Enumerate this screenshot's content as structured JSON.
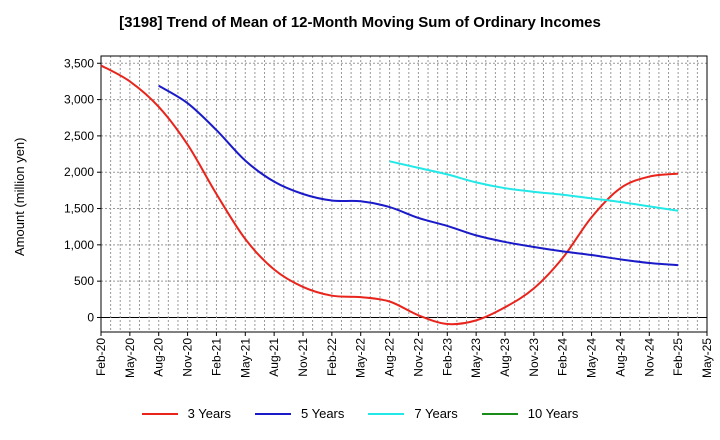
{
  "chart_data": {
    "type": "line",
    "title": "[3198]  Trend of Mean of 12-Month Moving Sum of Ordinary Incomes",
    "ylabel": "Amount (million yen)",
    "xlabel": "",
    "ylim": [
      -200,
      3600
    ],
    "yticks": [
      0,
      500,
      1000,
      1500,
      2000,
      2500,
      3000,
      3500
    ],
    "ytick_labels": [
      "0",
      "500",
      "1,000",
      "1,500",
      "2,000",
      "2,500",
      "3,000",
      "3,500"
    ],
    "categories": [
      "Feb-20",
      "May-20",
      "Aug-20",
      "Nov-20",
      "Feb-21",
      "May-21",
      "Aug-21",
      "Nov-21",
      "Feb-22",
      "May-22",
      "Aug-22",
      "Nov-22",
      "Feb-23",
      "May-23",
      "Aug-23",
      "Nov-23",
      "Feb-24",
      "May-24",
      "Aug-24",
      "Nov-24",
      "Feb-25",
      "May-25"
    ],
    "grid": true,
    "series": [
      {
        "name": "3 Years",
        "color": "#e8241c",
        "values": [
          3470,
          3250,
          2900,
          2380,
          1700,
          1080,
          660,
          420,
          300,
          280,
          220,
          30,
          -90,
          -40,
          140,
          400,
          820,
          1380,
          1780,
          1940,
          1980,
          null
        ]
      },
      {
        "name": "5 Years",
        "color": "#1a1ac8",
        "values": [
          null,
          null,
          3190,
          2950,
          2580,
          2160,
          1870,
          1700,
          1610,
          1600,
          1520,
          1370,
          1260,
          1130,
          1040,
          970,
          910,
          860,
          800,
          750,
          720,
          null
        ]
      },
      {
        "name": "7 Years",
        "color": "#22e8e8",
        "values": [
          null,
          null,
          null,
          null,
          null,
          null,
          null,
          null,
          null,
          null,
          2150,
          2060,
          1970,
          1860,
          1780,
          1730,
          1690,
          1640,
          1590,
          1530,
          1470,
          null
        ]
      },
      {
        "name": "10 Years",
        "color": "#1a8c1a",
        "values": [
          null,
          null,
          null,
          null,
          null,
          null,
          null,
          null,
          null,
          null,
          null,
          null,
          null,
          null,
          null,
          null,
          null,
          null,
          null,
          null,
          null,
          null
        ]
      }
    ]
  }
}
